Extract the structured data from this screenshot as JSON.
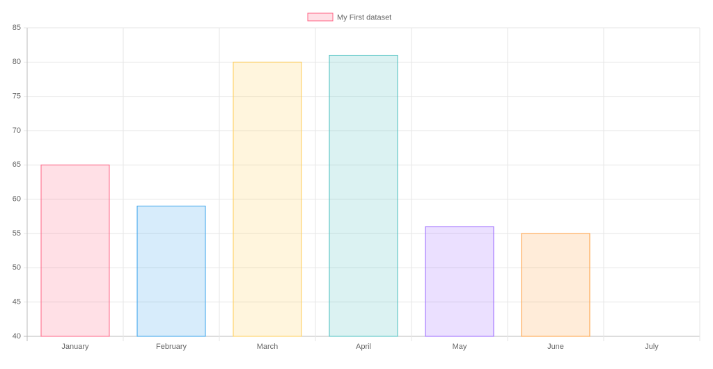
{
  "chart_data": {
    "type": "bar",
    "categories": [
      "January",
      "February",
      "March",
      "April",
      "May",
      "June",
      "July"
    ],
    "series": [
      {
        "name": "My First dataset",
        "colors": [
          "rgb(255, 99, 132)",
          "rgb(54, 162, 235)",
          "rgb(255, 205, 86)",
          "rgb(75, 192, 192)",
          "rgb(153, 102, 255)",
          "rgb(255, 159, 64)",
          "rgb(201, 203, 207)"
        ],
        "values": [
          65,
          59,
          80,
          81,
          56,
          55,
          40
        ]
      }
    ],
    "ylim": [
      40,
      85
    ],
    "yticks": [
      40,
      45,
      50,
      55,
      60,
      65,
      70,
      75,
      80,
      85
    ],
    "grid": true,
    "legend": "top"
  }
}
